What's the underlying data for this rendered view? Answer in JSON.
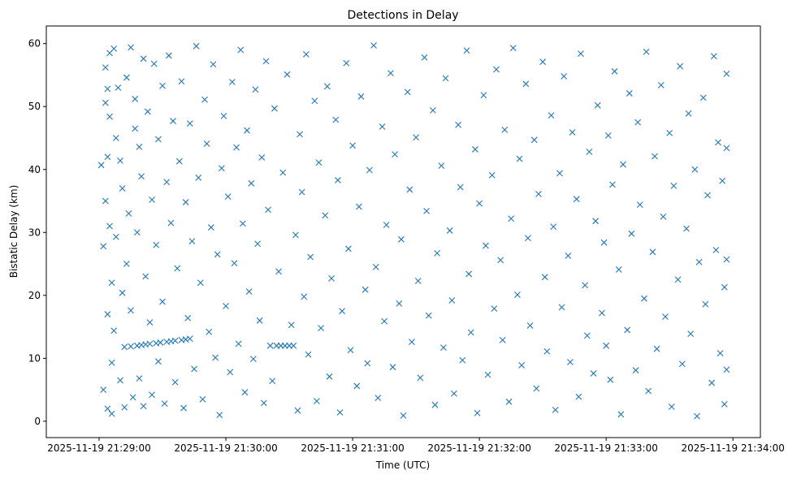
{
  "chart_data": {
    "type": "scatter",
    "title": "Detections in Delay",
    "xlabel": "Time (UTC)",
    "ylabel": "Bistatic Delay (km)",
    "x_units": "seconds after 2025-11-19 21:29:00",
    "xlim": [
      -25,
      313
    ],
    "ylim": [
      -2.6,
      62.8
    ],
    "xticks": [
      0,
      60,
      120,
      180,
      240,
      300
    ],
    "xtick_labels": [
      "2025-11-19 21:29:00",
      "2025-11-19 21:30:00",
      "2025-11-19 21:31:00",
      "2025-11-19 21:32:00",
      "2025-11-19 21:33:00",
      "2025-11-19 21:34:00"
    ],
    "yticks": [
      0,
      10,
      20,
      30,
      40,
      50,
      60
    ],
    "ytick_labels": [
      "0",
      "10",
      "20",
      "30",
      "40",
      "50",
      "60"
    ],
    "marker": "x",
    "color": "#1f77b4",
    "grid": false,
    "series": [
      {
        "name": "detections",
        "points": [
          [
            1,
            40.7
          ],
          [
            2,
            27.8
          ],
          [
            2,
            5
          ],
          [
            3,
            35
          ],
          [
            3,
            50.6
          ],
          [
            3,
            56.2
          ],
          [
            4,
            2
          ],
          [
            4,
            17
          ],
          [
            4,
            42
          ],
          [
            4,
            52.8
          ],
          [
            5,
            31
          ],
          [
            5,
            58.5
          ],
          [
            5,
            48.4
          ],
          [
            6,
            1.2
          ],
          [
            6,
            9.3
          ],
          [
            6,
            22
          ],
          [
            7,
            59.2
          ],
          [
            7,
            14.4
          ],
          [
            8,
            29.3
          ],
          [
            8,
            45
          ],
          [
            9,
            53
          ],
          [
            10,
            6.5
          ],
          [
            10,
            41.4
          ],
          [
            11,
            20.4
          ],
          [
            11,
            37
          ],
          [
            12,
            11.8
          ],
          [
            12,
            2.2
          ],
          [
            13,
            54.6
          ],
          [
            13,
            25
          ],
          [
            14,
            33
          ],
          [
            15,
            17.6
          ],
          [
            15,
            59.4
          ],
          [
            15,
            11.9
          ],
          [
            16,
            3.8
          ],
          [
            17,
            46.5
          ],
          [
            17,
            51.2
          ],
          [
            18,
            12
          ],
          [
            18,
            30
          ],
          [
            19,
            43.6
          ],
          [
            19,
            6.8
          ],
          [
            20,
            12.1
          ],
          [
            20,
            38.9
          ],
          [
            21,
            57.6
          ],
          [
            21,
            2.4
          ],
          [
            22,
            12.2
          ],
          [
            22,
            23
          ],
          [
            23,
            49.2
          ],
          [
            24,
            12.3
          ],
          [
            24,
            15.7
          ],
          [
            25,
            35.2
          ],
          [
            25,
            4.2
          ],
          [
            26,
            56.8
          ],
          [
            27,
            12.4
          ],
          [
            27,
            28
          ],
          [
            28,
            44.8
          ],
          [
            28,
            9.5
          ],
          [
            29,
            12.5
          ],
          [
            30,
            53.3
          ],
          [
            30,
            19
          ],
          [
            31,
            2.8
          ],
          [
            32,
            12.6
          ],
          [
            32,
            38
          ],
          [
            33,
            58.1
          ],
          [
            34,
            12.7
          ],
          [
            34,
            31.5
          ],
          [
            35,
            47.7
          ],
          [
            36,
            6.2
          ],
          [
            36,
            12.8
          ],
          [
            37,
            24.3
          ],
          [
            38,
            41.3
          ],
          [
            39,
            12.9
          ],
          [
            39,
            54
          ],
          [
            40,
            2.1
          ],
          [
            41,
            13
          ],
          [
            41,
            34.8
          ],
          [
            42,
            16.4
          ],
          [
            43,
            13.1
          ],
          [
            43,
            47.3
          ],
          [
            44,
            28.6
          ],
          [
            45,
            8.3
          ],
          [
            46,
            59.6
          ],
          [
            47,
            38.7
          ],
          [
            48,
            22
          ],
          [
            49,
            3.5
          ],
          [
            50,
            51.1
          ],
          [
            51,
            44.1
          ],
          [
            52,
            14.2
          ],
          [
            53,
            30.8
          ],
          [
            54,
            56.7
          ],
          [
            55,
            10.1
          ],
          [
            56,
            26.5
          ],
          [
            57,
            1
          ],
          [
            58,
            40.2
          ],
          [
            59,
            48.5
          ],
          [
            60,
            18.3
          ],
          [
            61,
            35.7
          ],
          [
            62,
            7.8
          ],
          [
            63,
            53.9
          ],
          [
            64,
            25.1
          ],
          [
            65,
            43.5
          ],
          [
            66,
            12.3
          ],
          [
            67,
            59
          ],
          [
            68,
            31.4
          ],
          [
            69,
            4.6
          ],
          [
            70,
            46.2
          ],
          [
            71,
            20.6
          ],
          [
            72,
            37.8
          ],
          [
            73,
            9.9
          ],
          [
            74,
            52.7
          ],
          [
            75,
            28.2
          ],
          [
            76,
            16
          ],
          [
            77,
            41.9
          ],
          [
            78,
            2.9
          ],
          [
            79,
            57.2
          ],
          [
            80,
            33.6
          ],
          [
            81,
            12
          ],
          [
            82,
            6.4
          ],
          [
            83,
            49.7
          ],
          [
            84,
            12
          ],
          [
            85,
            23.8
          ],
          [
            86,
            12
          ],
          [
            87,
            39.5
          ],
          [
            88,
            12
          ],
          [
            89,
            55.1
          ],
          [
            90,
            12
          ],
          [
            91,
            15.3
          ],
          [
            92,
            12
          ],
          [
            93,
            29.6
          ],
          [
            94,
            1.7
          ],
          [
            95,
            45.6
          ],
          [
            96,
            36.4
          ],
          [
            97,
            19.8
          ],
          [
            98,
            58.3
          ],
          [
            99,
            10.6
          ],
          [
            100,
            26.1
          ],
          [
            102,
            50.9
          ],
          [
            103,
            3.2
          ],
          [
            104,
            41.1
          ],
          [
            105,
            14.8
          ],
          [
            107,
            32.7
          ],
          [
            108,
            53.2
          ],
          [
            109,
            7.1
          ],
          [
            110,
            22.7
          ],
          [
            112,
            47.9
          ],
          [
            113,
            38.3
          ],
          [
            114,
            1.4
          ],
          [
            115,
            17.5
          ],
          [
            117,
            56.9
          ],
          [
            118,
            27.4
          ],
          [
            119,
            11.3
          ],
          [
            120,
            43.8
          ],
          [
            122,
            5.6
          ],
          [
            123,
            34.1
          ],
          [
            124,
            51.6
          ],
          [
            126,
            20.9
          ],
          [
            127,
            9.2
          ],
          [
            128,
            39.9
          ],
          [
            130,
            59.7
          ],
          [
            131,
            24.5
          ],
          [
            132,
            3.7
          ],
          [
            134,
            46.8
          ],
          [
            135,
            15.9
          ],
          [
            136,
            31.2
          ],
          [
            138,
            55.3
          ],
          [
            139,
            8.6
          ],
          [
            140,
            42.4
          ],
          [
            142,
            18.7
          ],
          [
            143,
            28.9
          ],
          [
            144,
            0.9
          ],
          [
            146,
            52.3
          ],
          [
            147,
            36.8
          ],
          [
            148,
            12.6
          ],
          [
            150,
            45.1
          ],
          [
            151,
            22.3
          ],
          [
            152,
            6.9
          ],
          [
            154,
            57.8
          ],
          [
            155,
            33.4
          ],
          [
            156,
            16.8
          ],
          [
            158,
            49.4
          ],
          [
            159,
            2.6
          ],
          [
            160,
            26.7
          ],
          [
            162,
            40.6
          ],
          [
            163,
            11.7
          ],
          [
            164,
            54.5
          ],
          [
            166,
            30.3
          ],
          [
            167,
            19.2
          ],
          [
            168,
            4.4
          ],
          [
            170,
            47.1
          ],
          [
            171,
            37.2
          ],
          [
            172,
            9.7
          ],
          [
            174,
            58.9
          ],
          [
            175,
            23.4
          ],
          [
            176,
            14.1
          ],
          [
            178,
            43.2
          ],
          [
            179,
            1.3
          ],
          [
            180,
            34.6
          ],
          [
            182,
            51.8
          ],
          [
            183,
            27.9
          ],
          [
            184,
            7.4
          ],
          [
            186,
            39.1
          ],
          [
            187,
            17.9
          ],
          [
            188,
            55.9
          ],
          [
            190,
            25.6
          ],
          [
            191,
            12.9
          ],
          [
            192,
            46.3
          ],
          [
            194,
            3.1
          ],
          [
            195,
            32.2
          ],
          [
            196,
            59.3
          ],
          [
            198,
            20.1
          ],
          [
            199,
            41.7
          ],
          [
            200,
            8.9
          ],
          [
            202,
            53.6
          ],
          [
            203,
            29.1
          ],
          [
            204,
            15.2
          ],
          [
            206,
            44.7
          ],
          [
            207,
            5.2
          ],
          [
            208,
            36.1
          ],
          [
            210,
            57.1
          ],
          [
            211,
            22.9
          ],
          [
            212,
            11.1
          ],
          [
            214,
            48.6
          ],
          [
            215,
            30.9
          ],
          [
            216,
            1.8
          ],
          [
            218,
            39.4
          ],
          [
            219,
            18.1
          ],
          [
            220,
            54.8
          ],
          [
            222,
            26.3
          ],
          [
            223,
            9.4
          ],
          [
            224,
            45.9
          ],
          [
            226,
            35.3
          ],
          [
            227,
            3.9
          ],
          [
            228,
            58.4
          ],
          [
            230,
            21.6
          ],
          [
            231,
            13.6
          ],
          [
            232,
            42.8
          ],
          [
            234,
            7.6
          ],
          [
            235,
            31.8
          ],
          [
            236,
            50.2
          ],
          [
            238,
            17.2
          ],
          [
            239,
            28.4
          ],
          [
            240,
            12
          ],
          [
            241,
            45.4
          ],
          [
            242,
            6.6
          ],
          [
            243,
            37.6
          ],
          [
            244,
            55.6
          ],
          [
            246,
            24.1
          ],
          [
            247,
            1.1
          ],
          [
            248,
            40.8
          ],
          [
            250,
            14.5
          ],
          [
            251,
            52.1
          ],
          [
            252,
            29.8
          ],
          [
            254,
            8.1
          ],
          [
            255,
            47.5
          ],
          [
            256,
            34.4
          ],
          [
            258,
            19.5
          ],
          [
            259,
            58.7
          ],
          [
            260,
            4.8
          ],
          [
            262,
            26.9
          ],
          [
            263,
            42.1
          ],
          [
            264,
            11.5
          ],
          [
            266,
            53.4
          ],
          [
            267,
            32.5
          ],
          [
            268,
            16.6
          ],
          [
            270,
            45.8
          ],
          [
            271,
            2.3
          ],
          [
            272,
            37.4
          ],
          [
            274,
            22.5
          ],
          [
            275,
            56.4
          ],
          [
            276,
            9.1
          ],
          [
            278,
            30.6
          ],
          [
            279,
            48.9
          ],
          [
            280,
            13.9
          ],
          [
            282,
            40
          ],
          [
            283,
            0.8
          ],
          [
            284,
            25.3
          ],
          [
            286,
            51.4
          ],
          [
            287,
            18.6
          ],
          [
            288,
            35.9
          ],
          [
            290,
            6.1
          ],
          [
            291,
            58
          ],
          [
            292,
            27.2
          ],
          [
            293,
            44.3
          ],
          [
            294,
            10.8
          ],
          [
            295,
            38.2
          ],
          [
            296,
            2.7
          ],
          [
            296,
            21.3
          ],
          [
            297,
            55.2
          ],
          [
            297,
            43.4
          ],
          [
            297,
            8.2
          ],
          [
            297,
            25.7
          ]
        ]
      }
    ]
  }
}
